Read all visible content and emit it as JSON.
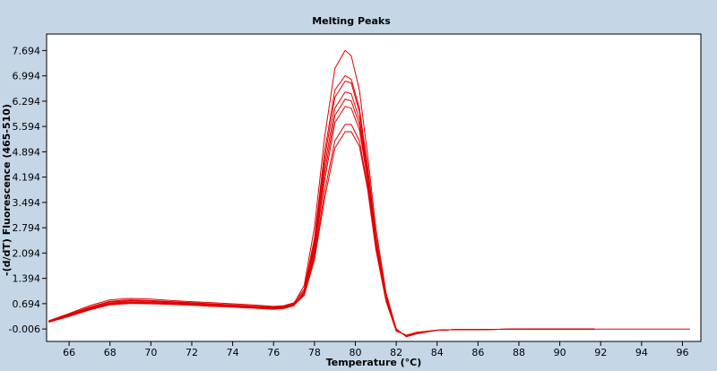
{
  "chart_data": {
    "type": "line",
    "title": "Melting Peaks",
    "xlabel": "Temperature (°C)",
    "ylabel": "-(d/dT) Fluorescence (465-510)",
    "xlim": [
      64.9,
      96.9
    ],
    "ylim": [
      -0.35,
      8.15
    ],
    "x_ticks": [
      "66",
      "68",
      "70",
      "72",
      "74",
      "76",
      "78",
      "80",
      "82",
      "84",
      "86",
      "88",
      "90",
      "92",
      "94",
      "96"
    ],
    "y_ticks": [
      "-0.006",
      "0.694",
      "1.394",
      "2.094",
      "2.794",
      "3.494",
      "4.194",
      "4.894",
      "5.594",
      "6.294",
      "6.994",
      "7.694"
    ],
    "grid": false,
    "legend": "none",
    "series": [
      {
        "x": [
          65,
          66,
          67,
          68,
          69,
          70,
          71,
          72,
          73,
          74,
          75,
          76,
          76.5,
          77,
          77.5,
          78,
          78.5,
          79,
          79.5,
          79.8,
          80.2,
          80.6,
          81,
          81.5,
          82,
          82.5,
          83,
          84,
          85,
          86,
          88,
          90,
          91.7
        ],
        "y": [
          0.2,
          0.38,
          0.58,
          0.74,
          0.78,
          0.76,
          0.73,
          0.7,
          0.66,
          0.63,
          0.6,
          0.58,
          0.6,
          0.7,
          1.2,
          2.8,
          5.3,
          7.2,
          7.7,
          7.55,
          6.6,
          4.8,
          2.8,
          1.0,
          0.0,
          -0.22,
          -0.14,
          -0.04,
          -0.02,
          -0.02,
          -0.01,
          -0.01,
          -0.01
        ]
      },
      {
        "x": [
          65,
          66,
          67,
          68,
          69,
          70,
          71,
          72,
          73,
          74,
          75,
          76,
          76.5,
          77,
          77.5,
          78,
          78.5,
          79,
          79.5,
          79.8,
          80.2,
          80.6,
          81,
          81.5,
          82,
          82.5,
          83,
          84,
          85,
          86,
          88,
          90,
          91.7
        ],
        "y": [
          0.22,
          0.42,
          0.64,
          0.8,
          0.84,
          0.82,
          0.78,
          0.75,
          0.72,
          0.69,
          0.66,
          0.62,
          0.64,
          0.72,
          1.1,
          2.5,
          4.9,
          6.6,
          7.0,
          6.9,
          6.1,
          4.5,
          2.6,
          0.9,
          -0.02,
          -0.21,
          -0.13,
          -0.04,
          -0.02,
          -0.02,
          -0.01,
          -0.01,
          -0.01
        ]
      },
      {
        "x": [
          65,
          66,
          67,
          68,
          69,
          70,
          71,
          72,
          73,
          74,
          75,
          76,
          76.5,
          77,
          77.5,
          78,
          78.5,
          79,
          79.5,
          79.8,
          80.2,
          80.6,
          81,
          81.5,
          82,
          82.5,
          83,
          84,
          85,
          86,
          88,
          90,
          91.7
        ],
        "y": [
          0.2,
          0.36,
          0.55,
          0.7,
          0.74,
          0.72,
          0.7,
          0.68,
          0.65,
          0.62,
          0.59,
          0.55,
          0.57,
          0.66,
          1.05,
          2.4,
          4.7,
          6.4,
          6.85,
          6.8,
          6.0,
          4.4,
          2.5,
          0.9,
          -0.03,
          -0.2,
          -0.12,
          -0.04,
          -0.02,
          -0.02,
          -0.01,
          -0.01,
          -0.01
        ]
      },
      {
        "x": [
          65,
          66,
          67,
          68,
          69,
          70,
          71,
          72,
          73,
          74,
          75,
          76,
          76.5,
          77,
          77.5,
          78,
          78.5,
          79,
          79.5,
          79.8,
          80.2,
          80.6,
          81,
          81.5,
          82,
          82.5,
          83,
          84,
          85,
          86,
          88,
          90,
          91.7
        ],
        "y": [
          0.18,
          0.34,
          0.52,
          0.66,
          0.7,
          0.69,
          0.67,
          0.65,
          0.62,
          0.6,
          0.57,
          0.54,
          0.56,
          0.64,
          1.0,
          2.3,
          4.5,
          6.1,
          6.55,
          6.5,
          5.8,
          4.3,
          2.4,
          0.85,
          -0.04,
          -0.2,
          -0.12,
          -0.04,
          -0.02,
          -0.02,
          -0.01,
          -0.01,
          -0.01
        ]
      },
      {
        "x": [
          65,
          66,
          67,
          68,
          69,
          70,
          71,
          72,
          73,
          74,
          75,
          76,
          76.5,
          77,
          77.5,
          78,
          78.5,
          79,
          79.5,
          79.8,
          80.2,
          80.6,
          81,
          81.5,
          82,
          82.5,
          83,
          84,
          85,
          86,
          88,
          90,
          91.7
        ],
        "y": [
          0.2,
          0.4,
          0.6,
          0.76,
          0.8,
          0.78,
          0.75,
          0.72,
          0.69,
          0.66,
          0.63,
          0.6,
          0.62,
          0.69,
          1.0,
          2.2,
          4.3,
          5.9,
          6.35,
          6.3,
          5.65,
          4.2,
          2.35,
          0.8,
          -0.05,
          -0.19,
          -0.11,
          -0.04,
          -0.02,
          -0.02,
          -0.01,
          -0.01,
          -0.01
        ]
      },
      {
        "x": [
          65,
          66,
          67,
          68,
          69,
          70,
          71,
          72,
          73,
          74,
          75,
          76,
          76.5,
          77,
          77.5,
          78,
          78.5,
          79,
          79.5,
          79.8,
          80.2,
          80.6,
          81,
          81.5,
          82,
          82.5,
          83,
          84,
          85,
          86,
          88,
          90,
          91.7
        ],
        "y": [
          0.19,
          0.35,
          0.53,
          0.68,
          0.72,
          0.7,
          0.68,
          0.66,
          0.63,
          0.61,
          0.58,
          0.55,
          0.57,
          0.65,
          0.95,
          2.1,
          4.1,
          5.7,
          6.15,
          6.1,
          5.5,
          4.1,
          2.3,
          0.8,
          -0.05,
          -0.19,
          -0.11,
          -0.04,
          -0.02,
          -0.02,
          -0.01,
          -0.01,
          -0.01
        ]
      },
      {
        "x": [
          65,
          66,
          67,
          68,
          69,
          70,
          71,
          72,
          73,
          74,
          75,
          76,
          76.5,
          77,
          77.5,
          78,
          78.5,
          79,
          79.5,
          79.8,
          80.2,
          80.6,
          81,
          81.5,
          82,
          82.5,
          83,
          84,
          85,
          86,
          88,
          90,
          91.7
        ],
        "y": [
          0.21,
          0.39,
          0.59,
          0.74,
          0.78,
          0.76,
          0.74,
          0.71,
          0.68,
          0.65,
          0.62,
          0.59,
          0.61,
          0.68,
          0.95,
          2.0,
          3.8,
          5.2,
          5.65,
          5.65,
          5.2,
          3.95,
          2.25,
          0.78,
          -0.06,
          -0.18,
          -0.1,
          -0.04,
          -0.02,
          -0.02,
          -0.01,
          -0.01,
          -0.01
        ]
      },
      {
        "x": [
          65,
          66,
          67,
          68,
          69,
          70,
          71,
          72,
          73,
          74,
          75,
          76,
          76.5,
          77,
          77.5,
          78,
          78.5,
          79,
          79.5,
          79.8,
          80.2,
          80.6,
          81,
          81.5,
          82,
          82.5,
          83,
          84,
          85,
          86,
          88,
          90,
          91.7
        ],
        "y": [
          0.2,
          0.37,
          0.56,
          0.71,
          0.75,
          0.73,
          0.71,
          0.69,
          0.66,
          0.63,
          0.6,
          0.57,
          0.59,
          0.66,
          0.92,
          1.9,
          3.6,
          5.0,
          5.45,
          5.45,
          5.05,
          3.85,
          2.2,
          0.76,
          -0.06,
          -0.18,
          -0.1,
          -0.04,
          -0.02,
          -0.02,
          -0.01,
          -0.01,
          -0.01
        ]
      }
    ]
  }
}
